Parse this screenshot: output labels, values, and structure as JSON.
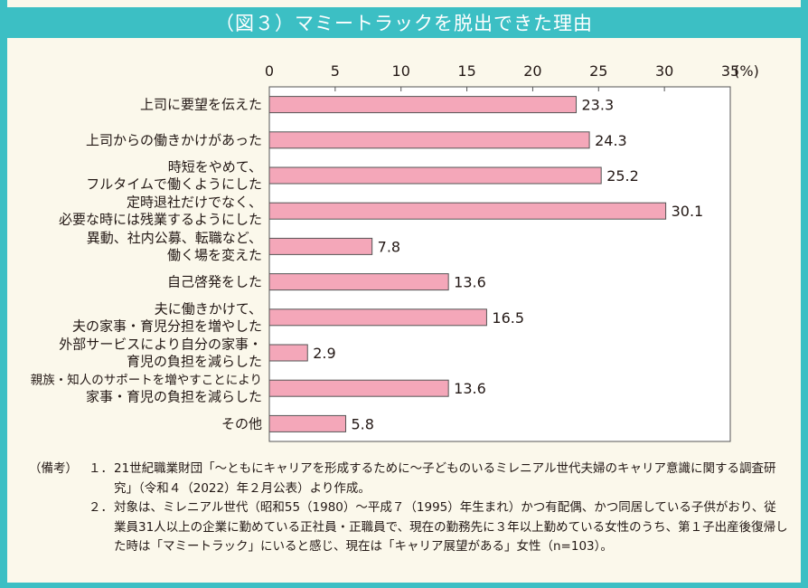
{
  "title": "（図３）マミートラックを脱出できた理由",
  "chart_data": {
    "type": "bar",
    "orientation": "horizontal",
    "title": "（図３）マミートラックを脱出できた理由",
    "unit_label": "(%)",
    "xlim": [
      0,
      35
    ],
    "ticks": [
      0,
      5,
      10,
      15,
      20,
      25,
      30,
      35
    ],
    "categories": [
      [
        "上司に要望を伝えた"
      ],
      [
        "上司からの働きかけがあった"
      ],
      [
        "時短をやめて、",
        "フルタイムで働くようにした"
      ],
      [
        "定時退社だけでなく、",
        "必要な時には残業するようにした"
      ],
      [
        "異動、社内公募、転職など、",
        "働く場を変えた"
      ],
      [
        "自己啓発をした"
      ],
      [
        "夫に働きかけて、",
        "夫の家事・育児分担を増やした"
      ],
      [
        "外部サービスにより自分の家事・",
        "育児の負担を減らした"
      ],
      [
        "親族・知人のサポートを増やすことにより",
        "家事・育児の負担を減らした"
      ],
      [
        "その他"
      ]
    ],
    "values": [
      23.3,
      24.3,
      25.2,
      30.1,
      7.8,
      13.6,
      16.5,
      2.9,
      13.6,
      5.8
    ],
    "value_labels": [
      "23.3",
      "24.3",
      "25.2",
      "30.1",
      "7.8",
      "13.6",
      "16.5",
      "2.9",
      "13.6",
      "5.8"
    ],
    "bar_color": "#f4a7b9",
    "bar_edge_color": "#555555"
  },
  "notes": {
    "label": "（備考）",
    "items": [
      {
        "num": "１．",
        "text": "21世紀職業財団「～ともにキャリアを形成するために～子どものいるミレニアル世代夫婦のキャリア意識に関する調査研究」（令和４（2022）年２月公表）より作成。"
      },
      {
        "num": "２．",
        "text": "対象は、ミレニアル世代（昭和55（1980）～平成７（1995）年生まれ）かつ有配偶、かつ同居している子供がおり、従業員31人以上の企業に勤めている正社員・正職員で、現在の勤務先に３年以上勤めている女性のうち、第１子出産後復帰した時は「マミートラック」にいると感じ、現在は「キャリア展望がある」女性（n=103）。"
      }
    ]
  }
}
